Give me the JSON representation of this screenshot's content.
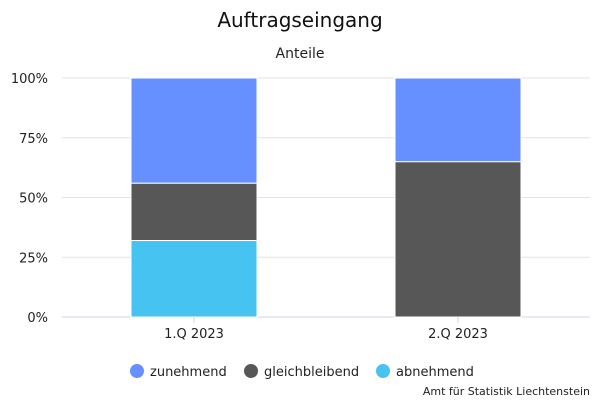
{
  "chart_data": {
    "type": "bar",
    "stacked": true,
    "percent": true,
    "title": "Auftragseingang",
    "subtitle": "Anteile",
    "categories": [
      "1.Q 2023",
      "2.Q 2023"
    ],
    "series": [
      {
        "name": "zunehmend",
        "color": "#6690ff",
        "values": [
          44,
          35
        ]
      },
      {
        "name": "gleichbleibend",
        "color": "#575757",
        "values": [
          24,
          65
        ]
      },
      {
        "name": "abnehmend",
        "color": "#47c3f2",
        "values": [
          32,
          0
        ]
      }
    ],
    "ylim": [
      0,
      100
    ],
    "yticks": [
      "0%",
      "25%",
      "50%",
      "75%",
      "100%"
    ],
    "grid": true,
    "legend": "bottom",
    "source": "Amt für Statistik Liechtenstein"
  }
}
